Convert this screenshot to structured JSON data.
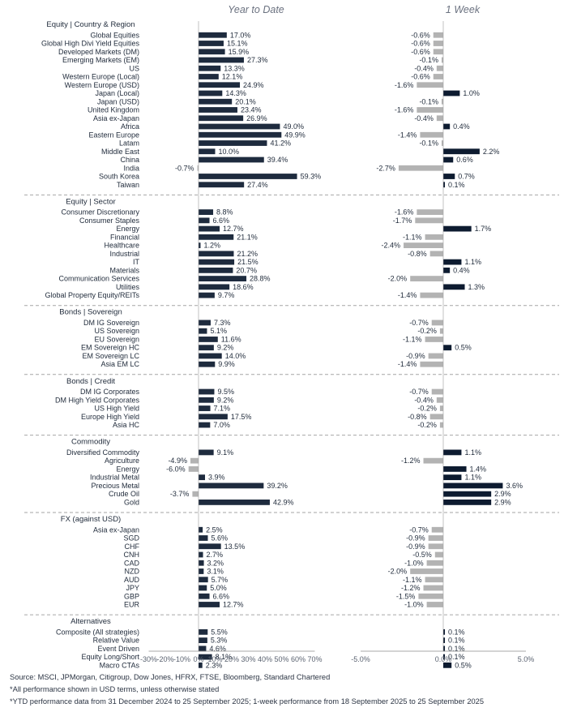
{
  "panel_titles": {
    "ytd": "Year to Date",
    "week": "1 Week"
  },
  "colors": {
    "ytd_positive": "#1e2b3e",
    "negative": "#b3b3b3",
    "week_positive": "#0d1b30",
    "divider": "#a6a6a6"
  },
  "chart_data": [
    {
      "type": "bar",
      "orientation": "horizontal",
      "title": "Year to Date",
      "xlim": [
        -30,
        70
      ],
      "x_tick_labels": [
        "-30%",
        "-20%",
        "-10%",
        "0%",
        "10%",
        "20%",
        "30%",
        "40%",
        "50%",
        "60%",
        "70%"
      ],
      "x_ticks": [
        -30,
        -20,
        -10,
        0,
        10,
        20,
        30,
        40,
        50,
        60,
        70
      ],
      "grid": false,
      "value_suffix": "%"
    },
    {
      "type": "bar",
      "orientation": "horizontal",
      "title": "1 Week",
      "xlim": [
        -5,
        5
      ],
      "x_tick_labels": [
        "-5.0%",
        "0.0%",
        "5.0%"
      ],
      "x_ticks": [
        -5,
        0,
        5
      ],
      "grid": false,
      "value_suffix": "%"
    }
  ],
  "sections": [
    {
      "title": "Equity | Country & Region",
      "rows": [
        {
          "label": "Global Equities",
          "ytd": 17.0,
          "week": -0.6
        },
        {
          "label": "Global High Divi Yield Equities",
          "ytd": 15.1,
          "week": -0.6
        },
        {
          "label": "Developed Markets (DM)",
          "ytd": 15.9,
          "week": -0.6
        },
        {
          "label": "Emerging Markets (EM)",
          "ytd": 27.3,
          "week": -0.1
        },
        {
          "label": "US",
          "ytd": 13.3,
          "week": -0.4
        },
        {
          "label": "Western Europe (Local)",
          "ytd": 12.1,
          "week": -0.6
        },
        {
          "label": "Western Europe (USD)",
          "ytd": 24.9,
          "week": -1.6
        },
        {
          "label": "Japan (Local)",
          "ytd": 14.3,
          "week": 1.0
        },
        {
          "label": "Japan (USD)",
          "ytd": 20.1,
          "week": -0.1
        },
        {
          "label": "United Kingdom",
          "ytd": 23.4,
          "week": -1.6
        },
        {
          "label": "Asia ex-Japan",
          "ytd": 26.9,
          "week": -0.4
        },
        {
          "label": "Africa",
          "ytd": 49.0,
          "week": 0.4
        },
        {
          "label": "Eastern Europe",
          "ytd": 49.9,
          "week": -1.4
        },
        {
          "label": "Latam",
          "ytd": 41.2,
          "week": -0.1
        },
        {
          "label": "Middle East",
          "ytd": 10.0,
          "week": 2.2
        },
        {
          "label": "China",
          "ytd": 39.4,
          "week": 0.6
        },
        {
          "label": "India",
          "ytd": -0.7,
          "week": -2.7
        },
        {
          "label": "South Korea",
          "ytd": 59.3,
          "week": 0.7
        },
        {
          "label": "Taiwan",
          "ytd": 27.4,
          "week": 0.1
        }
      ]
    },
    {
      "title": "Equity | Sector",
      "rows": [
        {
          "label": "Consumer Discretionary",
          "ytd": 8.8,
          "week": -1.6
        },
        {
          "label": "Consumer Staples",
          "ytd": 6.6,
          "week": -1.7
        },
        {
          "label": "Energy",
          "ytd": 12.7,
          "week": 1.7
        },
        {
          "label": "Financial",
          "ytd": 21.1,
          "week": -1.1
        },
        {
          "label": "Healthcare",
          "ytd": 1.2,
          "week": -2.4
        },
        {
          "label": "Industrial",
          "ytd": 21.2,
          "week": -0.8
        },
        {
          "label": "IT",
          "ytd": 21.5,
          "week": 1.1
        },
        {
          "label": "Materials",
          "ytd": 20.7,
          "week": 0.4
        },
        {
          "label": "Communication Services",
          "ytd": 28.8,
          "week": -2.0
        },
        {
          "label": "Utilities",
          "ytd": 18.6,
          "week": 1.3
        },
        {
          "label": "Global Property Equity/REITs",
          "ytd": 9.7,
          "week": -1.4
        }
      ]
    },
    {
      "title": "Bonds | Sovereign",
      "rows": [
        {
          "label": "DM IG Sovereign",
          "ytd": 7.3,
          "week": -0.7
        },
        {
          "label": "US Sovereign",
          "ytd": 5.1,
          "week": -0.2
        },
        {
          "label": "EU Sovereign",
          "ytd": 11.6,
          "week": -1.1
        },
        {
          "label": "EM Sovereign HC",
          "ytd": 9.2,
          "week": 0.5
        },
        {
          "label": "EM Sovereign LC",
          "ytd": 14.0,
          "week": -0.9
        },
        {
          "label": "Asia EM LC",
          "ytd": 9.9,
          "week": -1.4
        }
      ]
    },
    {
      "title": "Bonds | Credit",
      "rows": [
        {
          "label": "DM IG Corporates",
          "ytd": 9.5,
          "week": -0.7
        },
        {
          "label": "DM High Yield Corporates",
          "ytd": 9.2,
          "week": -0.4
        },
        {
          "label": "US High Yield",
          "ytd": 7.1,
          "week": -0.2
        },
        {
          "label": "Europe High Yield",
          "ytd": 17.5,
          "week": -0.8
        },
        {
          "label": "Asia HC",
          "ytd": 7.0,
          "week": -0.2
        }
      ]
    },
    {
      "title": "Commodity",
      "rows": [
        {
          "label": "Diversified Commodity",
          "ytd": 9.1,
          "week": 1.1
        },
        {
          "label": "Agriculture",
          "ytd": -4.9,
          "week": -1.2
        },
        {
          "label": "Energy",
          "ytd": -6.0,
          "week": 1.4
        },
        {
          "label": "Industrial Metal",
          "ytd": 3.9,
          "week": 1.1
        },
        {
          "label": "Precious Metal",
          "ytd": 39.2,
          "week": 3.6
        },
        {
          "label": "Crude Oil",
          "ytd": -3.7,
          "week": 2.9
        },
        {
          "label": "Gold",
          "ytd": 42.9,
          "week": 2.9
        }
      ]
    },
    {
      "title": "FX (against USD)",
      "rows": [
        {
          "label": "Asia ex-Japan",
          "ytd": 2.5,
          "week": -0.7
        },
        {
          "label": "SGD",
          "ytd": 5.6,
          "week": -0.9
        },
        {
          "label": "CHF",
          "ytd": 13.5,
          "week": -0.9
        },
        {
          "label": "CNH",
          "ytd": 2.7,
          "week": -0.5
        },
        {
          "label": "CAD",
          "ytd": 3.2,
          "week": -1.0
        },
        {
          "label": "NZD",
          "ytd": 3.1,
          "week": -2.0
        },
        {
          "label": "AUD",
          "ytd": 5.7,
          "week": -1.1
        },
        {
          "label": "JPY",
          "ytd": 5.0,
          "week": -1.2
        },
        {
          "label": "GBP",
          "ytd": 6.6,
          "week": -1.5
        },
        {
          "label": "EUR",
          "ytd": 12.7,
          "week": -1.0
        }
      ]
    },
    {
      "title": "Alternatives",
      "rows": [
        {
          "label": "Composite (All strategies)",
          "ytd": 5.5,
          "week": 0.1
        },
        {
          "label": "Relative Value",
          "ytd": 5.3,
          "week": 0.1
        },
        {
          "label": "Event Driven",
          "ytd": 4.6,
          "week": 0.1
        },
        {
          "label": "Equity Long/Short",
          "ytd": 8.1,
          "week": 0.1
        },
        {
          "label": "Macro CTAs",
          "ytd": 2.3,
          "week": 0.5
        }
      ]
    }
  ],
  "footnotes": [
    "Source: MSCI, JPMorgan, Citigroup, Dow Jones, HFRX, FTSE, Bloomberg, Standard Chartered",
    "*All performance shown in USD terms, unless otherwise stated",
    "*YTD performance data from 31 December 2024 to 25 September 2025; 1-week performance from 18 September 2025 to 25 September 2025"
  ]
}
